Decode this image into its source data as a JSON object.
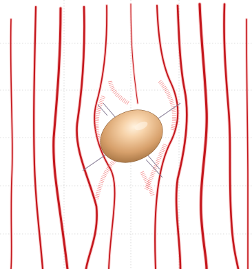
{
  "colors": {
    "background": "#ffffff",
    "grid": "#bdbdbd",
    "streamline_dark": "#c4161c",
    "streamline_light": "#ef6b6b",
    "particle_light": "#f7d3aa",
    "particle_mid": "#d7a06b",
    "particle_dark": "#9b6b3b",
    "axis_line": "#7a6e8a"
  },
  "diagram": {
    "particle_shape": "ellipsoid",
    "streamline_count": 10
  }
}
